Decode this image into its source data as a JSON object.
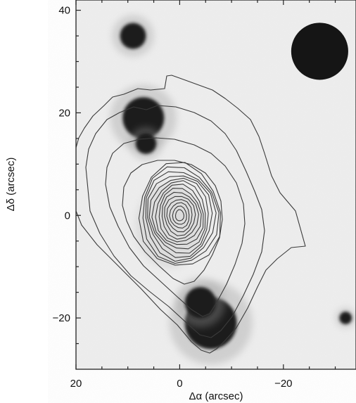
{
  "figure": {
    "xlabel": "Δα (arcsec)",
    "ylabel": "Δδ (arcsec)",
    "xticks": [
      {
        "value": 20,
        "label": "20"
      },
      {
        "value": 0,
        "label": "0"
      },
      {
        "value": -20,
        "label": "−20"
      }
    ],
    "yticks": [
      {
        "value": 40,
        "label": "40"
      },
      {
        "value": 20,
        "label": "20"
      },
      {
        "value": 0,
        "label": "0"
      },
      {
        "value": -20,
        "label": "−20"
      }
    ]
  },
  "chart_data": {
    "type": "contour",
    "xlim": [
      20,
      -34
    ],
    "ylim": [
      -30,
      42
    ],
    "x_axis_direction": "reversed",
    "background": "greyscale optical image",
    "beam": {
      "x": -27,
      "y": 32,
      "diameter": 11
    },
    "peak": {
      "x": 0,
      "y": 0
    },
    "inner_contour_count": 14,
    "image_sources": [
      {
        "x": 7,
        "y": 19,
        "size": 4
      },
      {
        "x": 6.5,
        "y": 14,
        "size": 2
      },
      {
        "x": 9,
        "y": 35,
        "size": 2.5
      },
      {
        "x": -6,
        "y": -21,
        "size": 5
      },
      {
        "x": -4,
        "y": -17,
        "size": 3
      },
      {
        "x": -32,
        "y": -20,
        "size": 1.2
      }
    ]
  }
}
